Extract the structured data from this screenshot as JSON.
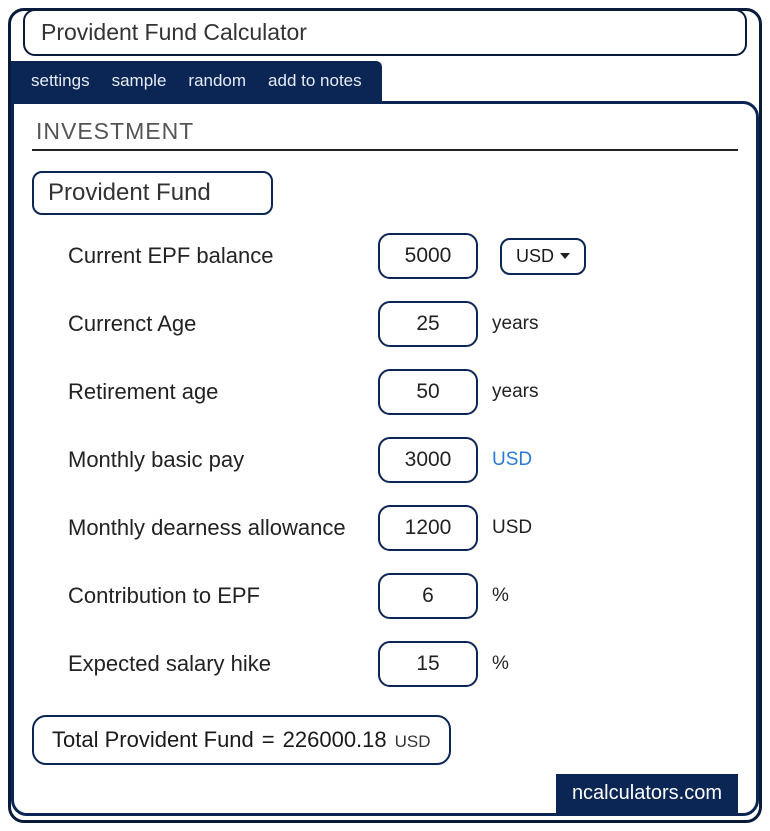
{
  "colors": {
    "accent": "#0b2554",
    "border_dark": "#0a1a3a",
    "text": "#222222",
    "muted": "#555555",
    "link": "#2a7ad4",
    "bg": "#ffffff"
  },
  "title": "Provident Fund Calculator",
  "tabs": {
    "settings": "settings",
    "sample": "sample",
    "random": "random",
    "add_notes": "add to notes"
  },
  "section_title": "INVESTMENT",
  "subheading": "Provident Fund",
  "currency_selector": {
    "value": "USD"
  },
  "fields": {
    "epf_balance": {
      "label": "Current EPF balance",
      "value": "5000"
    },
    "current_age": {
      "label": "Currenct Age",
      "value": "25",
      "unit": "years"
    },
    "retire_age": {
      "label": "Retirement age",
      "value": "50",
      "unit": "years"
    },
    "basic_pay": {
      "label": "Monthly basic pay",
      "value": "3000",
      "unit": "USD",
      "unit_is_link": true
    },
    "dearness": {
      "label": "Monthly dearness allowance",
      "value": "1200",
      "unit": "USD"
    },
    "contribution": {
      "label": "Contribution to EPF",
      "value": "6",
      "unit": "%"
    },
    "salary_hike": {
      "label": "Expected salary hike",
      "value": "15",
      "unit": "%"
    }
  },
  "result": {
    "label": "Total Provident Fund",
    "equals": "=",
    "value": "226000.18",
    "currency": "USD"
  },
  "watermark": "ncalculators.com"
}
